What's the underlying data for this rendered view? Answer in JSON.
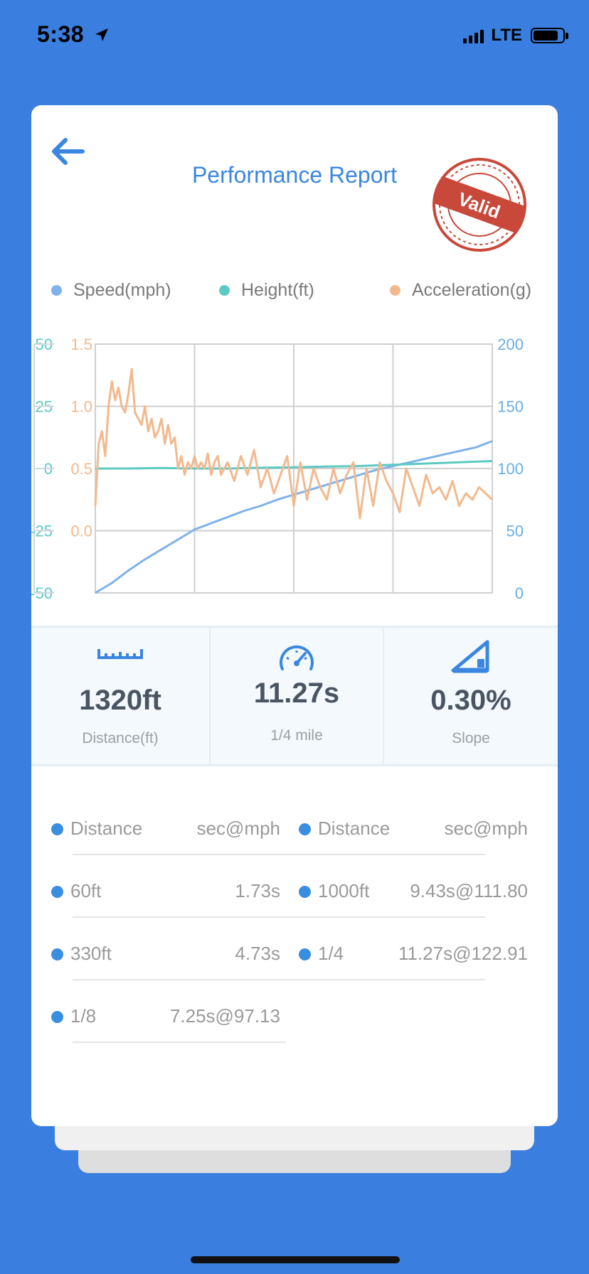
{
  "status": {
    "time": "5:38",
    "network": "LTE",
    "location_icon": "location-arrow-icon",
    "signal_icon": "signal-bars-icon",
    "battery_icon": "battery-icon"
  },
  "header": {
    "title": "Performance Report",
    "back_icon": "arrow-left-icon",
    "stamp_text": "Valid",
    "accent_color": "#3a86e0",
    "stamp_color": "#c8483a"
  },
  "legend": [
    {
      "label": "Speed(mph)",
      "color": "#7fb2ea"
    },
    {
      "label": "Height(ft)",
      "color": "#5cc9c3"
    },
    {
      "label": "Acceleration(g)",
      "color": "#f2b98e"
    }
  ],
  "chart_data": {
    "type": "line",
    "grid": true,
    "x_range": [
      0,
      12
    ],
    "axes": {
      "height": {
        "ticks": [
          "50",
          "25",
          "0",
          "-25",
          "-50"
        ],
        "range": [
          -50,
          50
        ],
        "color": "#5cc9c3"
      },
      "acceleration": {
        "ticks": [
          "1.5",
          "1.0",
          "0.5",
          "0.0"
        ],
        "range": [
          -0.5,
          1.5
        ],
        "color": "#f2b98e"
      },
      "speed": {
        "ticks": [
          "200",
          "150",
          "100",
          "50",
          "0"
        ],
        "range": [
          0,
          200
        ],
        "color": "#6aaee6"
      }
    },
    "series": [
      {
        "name": "Speed(mph)",
        "axis": "speed",
        "color": "#7fb2ea",
        "x": [
          0,
          0.5,
          1,
          1.5,
          2,
          2.5,
          3,
          3.5,
          4,
          4.5,
          5,
          5.5,
          6,
          6.5,
          7,
          7.5,
          8,
          8.5,
          9,
          9.5,
          10,
          10.5,
          11,
          11.5,
          12
        ],
        "y": [
          0,
          8,
          18,
          27,
          35,
          43,
          51,
          56,
          61,
          66,
          70,
          75,
          79,
          83,
          87,
          91,
          95,
          99,
          102,
          105,
          108,
          111,
          114,
          117,
          122
        ]
      },
      {
        "name": "Height(ft)",
        "axis": "height",
        "color": "#5cc9c3",
        "x": [
          0,
          1,
          2,
          3,
          4,
          5,
          6,
          7,
          8,
          9,
          10,
          11,
          12
        ],
        "y": [
          0,
          0,
          0.2,
          0,
          0,
          0.3,
          0.5,
          0.8,
          1,
          1.5,
          2,
          2.5,
          3
        ]
      },
      {
        "name": "Acceleration(g)",
        "axis": "acceleration",
        "color": "#f2b98e",
        "x": [
          0,
          0.1,
          0.2,
          0.3,
          0.4,
          0.5,
          0.6,
          0.7,
          0.8,
          0.9,
          1.0,
          1.1,
          1.2,
          1.3,
          1.4,
          1.5,
          1.6,
          1.7,
          1.8,
          1.9,
          2.0,
          2.1,
          2.2,
          2.3,
          2.4,
          2.5,
          2.6,
          2.7,
          2.8,
          2.9,
          3.0,
          3.1,
          3.2,
          3.3,
          3.4,
          3.5,
          3.6,
          3.7,
          3.8,
          3.9,
          4.0,
          4.2,
          4.4,
          4.6,
          4.8,
          5.0,
          5.2,
          5.4,
          5.6,
          5.8,
          6.0,
          6.2,
          6.4,
          6.6,
          6.8,
          7.0,
          7.2,
          7.4,
          7.6,
          7.8,
          8.0,
          8.2,
          8.4,
          8.6,
          8.8,
          9.0,
          9.2,
          9.4,
          9.6,
          9.8,
          10.0,
          10.2,
          10.4,
          10.6,
          10.8,
          11.0,
          11.2,
          11.4,
          11.6,
          11.8,
          12.0
        ],
        "y": [
          0.2,
          0.7,
          0.8,
          0.6,
          1.0,
          1.2,
          1.05,
          1.15,
          1.0,
          0.95,
          1.1,
          1.3,
          0.95,
          0.9,
          0.85,
          1.0,
          0.8,
          0.9,
          0.75,
          0.8,
          0.9,
          0.7,
          0.85,
          0.7,
          0.75,
          0.5,
          0.6,
          0.45,
          0.55,
          0.5,
          0.6,
          0.5,
          0.55,
          0.5,
          0.62,
          0.45,
          0.55,
          0.6,
          0.45,
          0.5,
          0.55,
          0.4,
          0.6,
          0.45,
          0.65,
          0.35,
          0.5,
          0.3,
          0.45,
          0.6,
          0.2,
          0.55,
          0.25,
          0.5,
          0.35,
          0.25,
          0.5,
          0.3,
          0.45,
          0.55,
          0.1,
          0.5,
          0.2,
          0.55,
          0.4,
          0.3,
          0.15,
          0.5,
          0.35,
          0.2,
          0.45,
          0.3,
          0.35,
          0.25,
          0.4,
          0.2,
          0.3,
          0.25,
          0.35,
          0.3,
          0.25
        ]
      }
    ]
  },
  "stats": [
    {
      "icon": "ruler-icon",
      "value": "1320ft",
      "label": "Distance(ft)"
    },
    {
      "icon": "speedometer-icon",
      "value": "11.27s",
      "label": "1/4 mile"
    },
    {
      "icon": "slope-icon",
      "value": "0.30%",
      "label": "Slope"
    }
  ],
  "splits": {
    "headers": {
      "left_a": "Distance",
      "left_b": "sec@mph",
      "right_a": "Distance",
      "right_b": "sec@mph"
    },
    "rows": [
      {
        "left_a": "60ft",
        "left_b": "1.73s",
        "right_a": "1000ft",
        "right_b": "9.43s@111.80"
      },
      {
        "left_a": "330ft",
        "left_b": "4.73s",
        "right_a": "1/4",
        "right_b": "11.27s@122.91"
      },
      {
        "left_a": "1/8",
        "left_b": "7.25s@97.13",
        "right_a": "",
        "right_b": ""
      }
    ]
  }
}
